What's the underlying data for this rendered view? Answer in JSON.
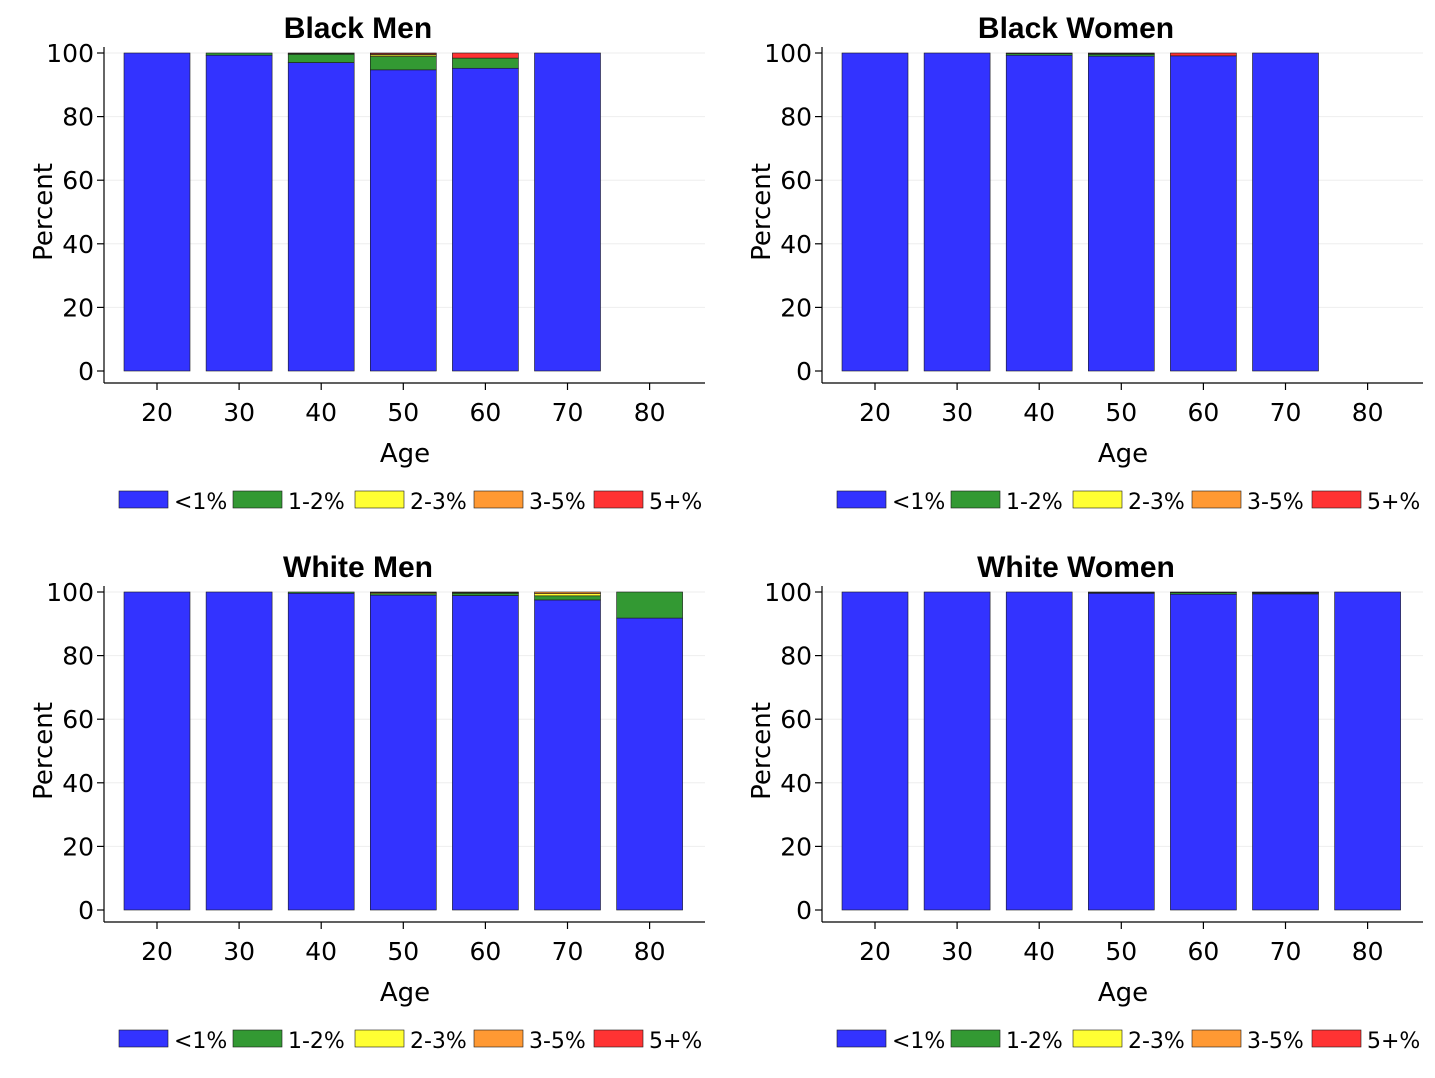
{
  "chart_data": [
    {
      "type": "bar",
      "stacked": true,
      "title": "Black Men",
      "xlabel": "Age",
      "ylabel": "Percent",
      "ylim": [
        0,
        100
      ],
      "yticks": [
        0,
        20,
        40,
        60,
        80,
        100
      ],
      "xticks": [
        20,
        30,
        40,
        50,
        60,
        70,
        80
      ],
      "categories": [
        20,
        30,
        40,
        50,
        60,
        70
      ],
      "legend_position": "bottom",
      "series": [
        {
          "name": "<1%",
          "color": "#3333ff",
          "values": [
            100,
            99.3,
            97,
            94.7,
            95.2,
            100
          ]
        },
        {
          "name": "1-2%",
          "color": "#339933",
          "values": [
            0,
            0.7,
            2.6,
            4.2,
            3.2,
            0
          ]
        },
        {
          "name": "2-3%",
          "color": "#ffff33",
          "values": [
            0,
            0,
            0.2,
            0.5,
            0,
            0
          ]
        },
        {
          "name": "3-5%",
          "color": "#ff9933",
          "values": [
            0,
            0,
            0.2,
            0.3,
            0,
            0
          ]
        },
        {
          "name": "5+%",
          "color": "#ff3333",
          "values": [
            0,
            0,
            0,
            0.3,
            1.6,
            0
          ]
        }
      ]
    },
    {
      "type": "bar",
      "stacked": true,
      "title": "Black Women",
      "xlabel": "Age",
      "ylabel": "Percent",
      "ylim": [
        0,
        100
      ],
      "yticks": [
        0,
        20,
        40,
        60,
        80,
        100
      ],
      "xticks": [
        20,
        30,
        40,
        50,
        60,
        70,
        80
      ],
      "categories": [
        20,
        30,
        40,
        50,
        60,
        70
      ],
      "legend_position": "bottom",
      "series": [
        {
          "name": "<1%",
          "color": "#3333ff",
          "values": [
            100,
            100,
            99.3,
            99,
            99.1,
            100
          ]
        },
        {
          "name": "1-2%",
          "color": "#339933",
          "values": [
            0,
            0,
            0.5,
            0.6,
            0,
            0
          ]
        },
        {
          "name": "2-3%",
          "color": "#ffff33",
          "values": [
            0,
            0,
            0.2,
            0.2,
            0,
            0
          ]
        },
        {
          "name": "3-5%",
          "color": "#ff9933",
          "values": [
            0,
            0,
            0,
            0,
            0,
            0
          ]
        },
        {
          "name": "5+%",
          "color": "#ff3333",
          "values": [
            0,
            0,
            0,
            0.2,
            0.9,
            0
          ]
        }
      ]
    },
    {
      "type": "bar",
      "stacked": true,
      "title": "White Men",
      "xlabel": "Age",
      "ylabel": "Percent",
      "ylim": [
        0,
        100
      ],
      "yticks": [
        0,
        20,
        40,
        60,
        80,
        100
      ],
      "xticks": [
        20,
        30,
        40,
        50,
        60,
        70,
        80
      ],
      "categories": [
        20,
        30,
        40,
        50,
        60,
        70,
        80
      ],
      "legend_position": "bottom",
      "series": [
        {
          "name": "<1%",
          "color": "#3333ff",
          "values": [
            100,
            100,
            99.6,
            99,
            98.9,
            97.5,
            91.8
          ]
        },
        {
          "name": "1-2%",
          "color": "#339933",
          "values": [
            0,
            0,
            0.4,
            0.5,
            0.7,
            1.3,
            8.2
          ]
        },
        {
          "name": "2-3%",
          "color": "#ffff33",
          "values": [
            0,
            0,
            0,
            0.3,
            0.2,
            0.7,
            0
          ]
        },
        {
          "name": "3-5%",
          "color": "#ff9933",
          "values": [
            0,
            0,
            0,
            0.2,
            0.2,
            0.5,
            0
          ]
        },
        {
          "name": "5+%",
          "color": "#ff3333",
          "values": [
            0,
            0,
            0,
            0,
            0,
            0,
            0
          ]
        }
      ]
    },
    {
      "type": "bar",
      "stacked": true,
      "title": "White Women",
      "xlabel": "Age",
      "ylabel": "Percent",
      "ylim": [
        0,
        100
      ],
      "yticks": [
        0,
        20,
        40,
        60,
        80,
        100
      ],
      "xticks": [
        20,
        30,
        40,
        50,
        60,
        70,
        80
      ],
      "categories": [
        20,
        30,
        40,
        50,
        60,
        70,
        80
      ],
      "legend_position": "bottom",
      "series": [
        {
          "name": "<1%",
          "color": "#3333ff",
          "values": [
            100,
            100,
            100,
            99.6,
            99.3,
            99.4,
            100
          ]
        },
        {
          "name": "1-2%",
          "color": "#339933",
          "values": [
            0,
            0,
            0,
            0.3,
            0.6,
            0.3,
            0
          ]
        },
        {
          "name": "2-3%",
          "color": "#ffff33",
          "values": [
            0,
            0,
            0,
            0.1,
            0.1,
            0.2,
            0
          ]
        },
        {
          "name": "3-5%",
          "color": "#ff9933",
          "values": [
            0,
            0,
            0,
            0,
            0,
            0.1,
            0
          ]
        },
        {
          "name": "5+%",
          "color": "#ff3333",
          "values": [
            0,
            0,
            0,
            0,
            0,
            0,
            0
          ]
        }
      ]
    }
  ]
}
